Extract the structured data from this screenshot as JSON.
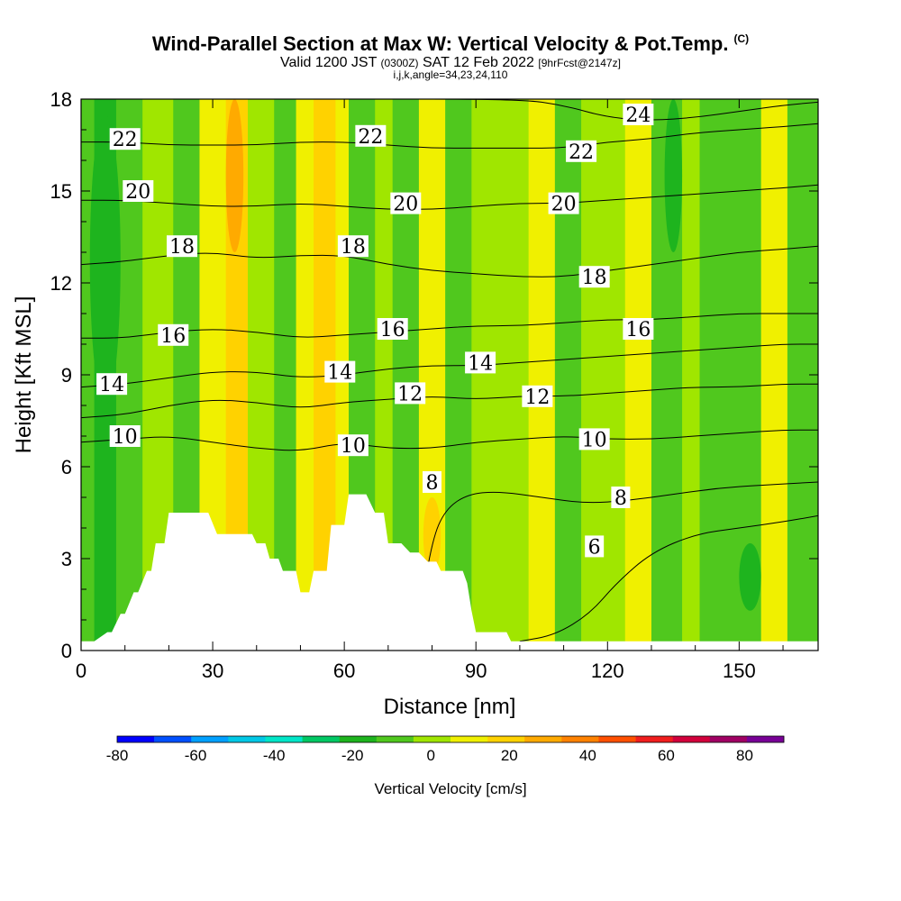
{
  "header": {
    "title": "Wind-Parallel Section at Max W: Vertical Velocity & Pot.Temp.",
    "copyright": "(C)",
    "valid_prefix": "Valid 1200 JST",
    "valid_zulu": "(0300Z)",
    "valid_date": "SAT 12 Feb 2022",
    "forecast": "[9hrFcst@2147z]",
    "section_params": "i,j,k,angle=34,23,24,110"
  },
  "chart_data": {
    "type": "heatmap",
    "xlabel": "Distance [nm]",
    "ylabel": "Height [Kft MSL]",
    "xlim": [
      0,
      168
    ],
    "ylim": [
      0,
      18
    ],
    "xticks": [
      0,
      30,
      60,
      90,
      120,
      150
    ],
    "yticks": [
      0,
      3,
      6,
      9,
      12,
      15,
      18
    ],
    "colorbar": {
      "label": "Vertical Velocity [cm/s]",
      "ticks": [
        -80,
        -60,
        -40,
        -20,
        0,
        20,
        40,
        60,
        80
      ],
      "range": [
        -80,
        90
      ],
      "colors": [
        "#0000ff",
        "#0050ff",
        "#00a0ff",
        "#00c8e6",
        "#00e6c8",
        "#00c864",
        "#1eb41e",
        "#50c81e",
        "#a0e600",
        "#f0f000",
        "#ffd200",
        "#ffaa00",
        "#ff8200",
        "#ff5000",
        "#f01e1e",
        "#d2003c",
        "#a00064",
        "#780096"
      ]
    },
    "vertical_velocity_columns": [
      {
        "x0": 0,
        "x1": 3,
        "w": -12
      },
      {
        "x0": 3,
        "x1": 8,
        "w": -18
      },
      {
        "x0": 8,
        "x1": 14,
        "w": -8
      },
      {
        "x0": 14,
        "x1": 21,
        "w": 2
      },
      {
        "x0": 21,
        "x1": 27,
        "w": -6
      },
      {
        "x0": 27,
        "x1": 33,
        "w": 5
      },
      {
        "x0": 33,
        "x1": 38,
        "w": 15
      },
      {
        "x0": 38,
        "x1": 44,
        "w": 4
      },
      {
        "x0": 44,
        "x1": 49,
        "w": -8
      },
      {
        "x0": 49,
        "x1": 53,
        "w": 5
      },
      {
        "x0": 53,
        "x1": 58,
        "w": 16
      },
      {
        "x0": 58,
        "x1": 61,
        "w": 6
      },
      {
        "x0": 61,
        "x1": 67,
        "w": -5
      },
      {
        "x0": 67,
        "x1": 71,
        "w": 4
      },
      {
        "x0": 71,
        "x1": 77,
        "w": -6
      },
      {
        "x0": 77,
        "x1": 83,
        "w": 5
      },
      {
        "x0": 83,
        "x1": 89,
        "w": -5
      },
      {
        "x0": 89,
        "x1": 94,
        "w": 4
      },
      {
        "x0": 94,
        "x1": 102,
        "w": -4
      },
      {
        "x0": 102,
        "x1": 108,
        "w": 5
      },
      {
        "x0": 108,
        "x1": 114,
        "w": -6
      },
      {
        "x0": 114,
        "x1": 119,
        "w": 4
      },
      {
        "x0": 119,
        "x1": 124,
        "w": -4
      },
      {
        "x0": 124,
        "x1": 130,
        "w": 5
      },
      {
        "x0": 130,
        "x1": 137,
        "w": -6
      },
      {
        "x0": 137,
        "x1": 141,
        "w": 3
      },
      {
        "x0": 141,
        "x1": 146,
        "w": -5
      },
      {
        "x0": 146,
        "x1": 155,
        "w": -6
      },
      {
        "x0": 155,
        "x1": 161,
        "w": 5
      },
      {
        "x0": 161,
        "x1": 168,
        "w": -6
      }
    ],
    "vertical_velocity_patches": [
      {
        "x0": 2,
        "x1": 9,
        "y0": 8,
        "y1": 17.5,
        "w": -22
      },
      {
        "x0": 33,
        "x1": 37,
        "y0": 13,
        "y1": 18,
        "w": 25
      },
      {
        "x0": 53,
        "x1": 56,
        "y0": 11,
        "y1": 18,
        "w": 22
      },
      {
        "x0": 78,
        "x1": 82,
        "y0": 2.5,
        "y1": 5,
        "w": 18
      },
      {
        "x0": 150,
        "x1": 155,
        "y0": 1.3,
        "y1": 3.5,
        "w": -20
      },
      {
        "x0": 133,
        "x1": 137,
        "y0": 13,
        "y1": 18,
        "w": -20
      }
    ],
    "terrain_profile": {
      "x": [
        0,
        3,
        6,
        7,
        9,
        10,
        12,
        13,
        15,
        16,
        17,
        19,
        20,
        23,
        27,
        29,
        31,
        35,
        38,
        39,
        40,
        42,
        43,
        45,
        46,
        49,
        50,
        52,
        53,
        56,
        57,
        60,
        61,
        62,
        64,
        65,
        67,
        69,
        70,
        73,
        75,
        77,
        79,
        81,
        82,
        84,
        86,
        87,
        88,
        89,
        90,
        97,
        98,
        100,
        101,
        168
      ],
      "y": [
        0.3,
        0.3,
        0.6,
        0.6,
        1.2,
        1.2,
        1.9,
        1.9,
        2.6,
        2.6,
        3.5,
        3.5,
        4.5,
        4.5,
        4.5,
        4.5,
        3.8,
        3.8,
        3.8,
        3.8,
        3.5,
        3.5,
        3.0,
        3.0,
        2.6,
        2.6,
        1.9,
        1.9,
        2.6,
        2.6,
        4.1,
        4.1,
        5.1,
        5.1,
        5.1,
        5.1,
        4.5,
        4.5,
        3.5,
        3.5,
        3.2,
        3.2,
        2.9,
        2.9,
        2.6,
        2.6,
        2.6,
        2.6,
        2.2,
        1.3,
        0.6,
        0.6,
        0.3,
        0.3,
        0.3,
        0.3
      ]
    },
    "potential_temperature_contours": [
      {
        "value": 6,
        "points": [
          [
            100,
            0.3
          ],
          [
            108,
            0.5
          ],
          [
            116,
            1.2
          ],
          [
            122,
            2.2
          ],
          [
            130,
            3.2
          ],
          [
            140,
            3.8
          ],
          [
            150,
            4.0
          ],
          [
            160,
            4.2
          ],
          [
            168,
            4.4
          ]
        ]
      },
      {
        "value": 8,
        "points": [
          [
            77,
            1.0
          ],
          [
            80,
            3.6
          ],
          [
            83,
            4.6
          ],
          [
            88,
            5.1
          ],
          [
            95,
            5.2
          ],
          [
            105,
            5.0
          ],
          [
            115,
            4.8
          ],
          [
            125,
            4.9
          ],
          [
            135,
            5.1
          ],
          [
            145,
            5.3
          ],
          [
            155,
            5.4
          ],
          [
            168,
            5.5
          ]
        ]
      },
      {
        "value": 10,
        "points": [
          [
            0,
            6.8
          ],
          [
            10,
            6.9
          ],
          [
            20,
            7.0
          ],
          [
            30,
            6.8
          ],
          [
            40,
            6.6
          ],
          [
            50,
            6.5
          ],
          [
            60,
            6.8
          ],
          [
            70,
            6.6
          ],
          [
            80,
            6.6
          ],
          [
            90,
            6.8
          ],
          [
            100,
            6.9
          ],
          [
            110,
            7.0
          ],
          [
            120,
            6.9
          ],
          [
            130,
            6.9
          ],
          [
            140,
            7.0
          ],
          [
            150,
            7.1
          ],
          [
            160,
            7.2
          ],
          [
            168,
            7.2
          ]
        ]
      },
      {
        "value": 12,
        "points": [
          [
            0,
            7.6
          ],
          [
            10,
            7.7
          ],
          [
            20,
            8.0
          ],
          [
            30,
            8.2
          ],
          [
            40,
            8.1
          ],
          [
            50,
            7.9
          ],
          [
            60,
            8.1
          ],
          [
            70,
            8.2
          ],
          [
            80,
            8.3
          ],
          [
            90,
            8.2
          ],
          [
            100,
            8.3
          ],
          [
            110,
            8.3
          ],
          [
            120,
            8.4
          ],
          [
            130,
            8.5
          ],
          [
            140,
            8.6
          ],
          [
            150,
            8.6
          ],
          [
            160,
            8.7
          ],
          [
            168,
            8.7
          ]
        ]
      },
      {
        "value": 14,
        "points": [
          [
            0,
            8.6
          ],
          [
            10,
            8.7
          ],
          [
            20,
            8.9
          ],
          [
            30,
            9.1
          ],
          [
            40,
            9.1
          ],
          [
            50,
            8.9
          ],
          [
            60,
            9.0
          ],
          [
            70,
            9.2
          ],
          [
            80,
            9.3
          ],
          [
            90,
            9.3
          ],
          [
            100,
            9.4
          ],
          [
            110,
            9.5
          ],
          [
            120,
            9.6
          ],
          [
            130,
            9.7
          ],
          [
            140,
            9.8
          ],
          [
            150,
            9.9
          ],
          [
            160,
            10.0
          ],
          [
            168,
            10.0
          ]
        ]
      },
      {
        "value": 16,
        "points": [
          [
            0,
            10.2
          ],
          [
            10,
            10.2
          ],
          [
            20,
            10.4
          ],
          [
            30,
            10.5
          ],
          [
            40,
            10.4
          ],
          [
            50,
            10.2
          ],
          [
            60,
            10.3
          ],
          [
            70,
            10.4
          ],
          [
            80,
            10.5
          ],
          [
            90,
            10.6
          ],
          [
            100,
            10.6
          ],
          [
            110,
            10.7
          ],
          [
            120,
            10.8
          ],
          [
            130,
            10.8
          ],
          [
            140,
            10.9
          ],
          [
            150,
            11.0
          ],
          [
            160,
            11.0
          ],
          [
            168,
            11.0
          ]
        ]
      },
      {
        "value": 18,
        "points": [
          [
            0,
            12.6
          ],
          [
            10,
            12.7
          ],
          [
            20,
            12.9
          ],
          [
            30,
            13.0
          ],
          [
            40,
            12.8
          ],
          [
            50,
            12.9
          ],
          [
            60,
            12.9
          ],
          [
            70,
            12.6
          ],
          [
            80,
            12.4
          ],
          [
            90,
            12.3
          ],
          [
            100,
            12.2
          ],
          [
            110,
            12.2
          ],
          [
            120,
            12.4
          ],
          [
            130,
            12.6
          ],
          [
            140,
            12.8
          ],
          [
            150,
            13.0
          ],
          [
            160,
            13.1
          ],
          [
            168,
            13.2
          ]
        ]
      },
      {
        "value": 20,
        "points": [
          [
            0,
            14.7
          ],
          [
            10,
            14.7
          ],
          [
            20,
            14.6
          ],
          [
            30,
            14.5
          ],
          [
            40,
            14.5
          ],
          [
            50,
            14.6
          ],
          [
            60,
            14.5
          ],
          [
            70,
            14.4
          ],
          [
            80,
            14.4
          ],
          [
            90,
            14.5
          ],
          [
            100,
            14.6
          ],
          [
            110,
            14.6
          ],
          [
            120,
            14.7
          ],
          [
            130,
            14.8
          ],
          [
            140,
            14.9
          ],
          [
            150,
            15.0
          ],
          [
            160,
            15.1
          ],
          [
            168,
            15.2
          ]
        ]
      },
      {
        "value": 22,
        "points": [
          [
            0,
            16.6
          ],
          [
            10,
            16.6
          ],
          [
            20,
            16.5
          ],
          [
            30,
            16.5
          ],
          [
            40,
            16.5
          ],
          [
            50,
            16.6
          ],
          [
            60,
            16.6
          ],
          [
            70,
            16.5
          ],
          [
            80,
            16.4
          ],
          [
            90,
            16.4
          ],
          [
            100,
            16.4
          ],
          [
            110,
            16.4
          ],
          [
            120,
            16.6
          ],
          [
            130,
            16.7
          ],
          [
            140,
            16.9
          ],
          [
            150,
            17.0
          ],
          [
            160,
            17.1
          ],
          [
            168,
            17.2
          ]
        ]
      },
      {
        "value": 24,
        "points": [
          [
            0,
            18.0
          ],
          [
            20,
            18.0
          ],
          [
            60,
            18.0
          ],
          [
            100,
            18.0
          ],
          [
            110,
            17.8
          ],
          [
            120,
            17.4
          ],
          [
            130,
            17.3
          ],
          [
            140,
            17.4
          ],
          [
            150,
            17.6
          ],
          [
            160,
            17.8
          ],
          [
            168,
            17.9
          ]
        ]
      }
    ],
    "contour_labels": [
      {
        "text": "22",
        "x": 10,
        "y": 16.7
      },
      {
        "text": "20",
        "x": 13,
        "y": 15.0
      },
      {
        "text": "18",
        "x": 23,
        "y": 13.2
      },
      {
        "text": "16",
        "x": 21,
        "y": 10.3
      },
      {
        "text": "14",
        "x": 7,
        "y": 8.7
      },
      {
        "text": "10",
        "x": 10,
        "y": 7.0
      },
      {
        "text": "22",
        "x": 66,
        "y": 16.8
      },
      {
        "text": "20",
        "x": 74,
        "y": 14.6
      },
      {
        "text": "18",
        "x": 62,
        "y": 13.2
      },
      {
        "text": "16",
        "x": 71,
        "y": 10.5
      },
      {
        "text": "14",
        "x": 59,
        "y": 9.1
      },
      {
        "text": "12",
        "x": 75,
        "y": 8.4
      },
      {
        "text": "10",
        "x": 62,
        "y": 6.7
      },
      {
        "text": "8",
        "x": 80,
        "y": 5.5
      },
      {
        "text": "14",
        "x": 91,
        "y": 9.4
      },
      {
        "text": "12",
        "x": 104,
        "y": 8.3
      },
      {
        "text": "24",
        "x": 127,
        "y": 17.5
      },
      {
        "text": "22",
        "x": 114,
        "y": 16.3
      },
      {
        "text": "20",
        "x": 110,
        "y": 14.6
      },
      {
        "text": "18",
        "x": 117,
        "y": 12.2
      },
      {
        "text": "16",
        "x": 127,
        "y": 10.5
      },
      {
        "text": "10",
        "x": 117,
        "y": 6.9
      },
      {
        "text": "8",
        "x": 123,
        "y": 5.0
      },
      {
        "text": "6",
        "x": 117,
        "y": 3.4
      }
    ]
  }
}
